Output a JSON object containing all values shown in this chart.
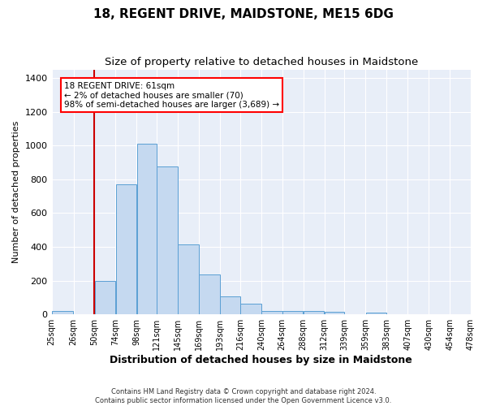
{
  "title": "18, REGENT DRIVE, MAIDSTONE, ME15 6DG",
  "subtitle": "Size of property relative to detached houses in Maidstone",
  "xlabel": "Distribution of detached houses by size in Maidstone",
  "ylabel": "Number of detached properties",
  "tick_labels": [
    "25sqm",
    "26sqm",
    "50sqm",
    "74sqm",
    "98sqm",
    "121sqm",
    "145sqm",
    "169sqm",
    "193sqm",
    "216sqm",
    "240sqm",
    "264sqm",
    "288sqm",
    "312sqm",
    "339sqm",
    "359sqm",
    "383sqm",
    "407sqm",
    "430sqm",
    "454sqm",
    "478sqm"
  ],
  "bar_heights": [
    20,
    0,
    200,
    770,
    1010,
    875,
    415,
    235,
    105,
    65,
    20,
    20,
    20,
    15,
    0,
    10,
    0,
    0,
    0,
    0,
    0
  ],
  "bar_color": "#c5d9f0",
  "bar_edge_color": "#5a9fd4",
  "bg_color": "#e8eef8",
  "grid_color": "#ffffff",
  "vline_x_index": 2,
  "vline_color": "#cc0000",
  "annotation_text": "18 REGENT DRIVE: 61sqm\n← 2% of detached houses are smaller (70)\n98% of semi-detached houses are larger (3,689) →",
  "ylim": [
    0,
    1450
  ],
  "yticks": [
    0,
    200,
    400,
    600,
    800,
    1000,
    1200,
    1400
  ],
  "footnote": "Contains HM Land Registry data © Crown copyright and database right 2024.\nContains public sector information licensed under the Open Government Licence v3.0.",
  "title_fontsize": 11,
  "subtitle_fontsize": 9.5,
  "xlabel_fontsize": 9,
  "ylabel_fontsize": 8,
  "tick_fontsize": 7,
  "annot_fontsize": 7.5,
  "bin_edges": [
    13,
    38,
    62,
    86,
    110,
    133,
    157,
    181,
    205,
    228,
    252,
    276,
    300,
    324,
    347,
    371,
    395,
    419,
    443,
    467,
    491
  ]
}
